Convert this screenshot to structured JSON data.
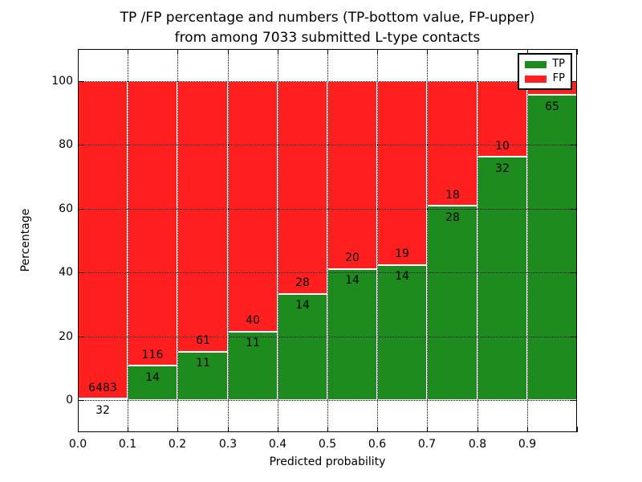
{
  "title": {
    "line1": "TP /FP percentage and numbers (TP-bottom value, FP-upper)",
    "line2": "from among 7033 submitted L-type contacts"
  },
  "axes": {
    "xlabel": "Predicted probability",
    "ylabel": "Percentage",
    "x_tick_labels": [
      "0.0",
      "0.1",
      "0.2",
      "0.3",
      "0.4",
      "0.5",
      "0.6",
      "0.7",
      "0.8",
      "0.9"
    ],
    "y_tick_labels": [
      "0",
      "20",
      "40",
      "60",
      "80",
      "100"
    ],
    "y_tick_values": [
      0,
      20,
      40,
      60,
      80,
      100
    ]
  },
  "legend": {
    "items": [
      {
        "label": "TP",
        "color": "#1e8b1e"
      },
      {
        "label": "FP",
        "color": "#ff1f1f"
      }
    ]
  },
  "chart_data": {
    "type": "bar",
    "stacked": true,
    "title": "TP /FP percentage and numbers (TP-bottom value, FP-upper) from among 7033 submitted L-type contacts",
    "xlabel": "Predicted probability",
    "ylabel": "Percentage",
    "xlim": [
      0.0,
      1.0
    ],
    "ylim": [
      -10,
      110
    ],
    "grid": true,
    "legend_position": "upper right",
    "bins": [
      [
        0.0,
        0.1
      ],
      [
        0.1,
        0.2
      ],
      [
        0.2,
        0.3
      ],
      [
        0.3,
        0.4
      ],
      [
        0.4,
        0.5
      ],
      [
        0.5,
        0.6
      ],
      [
        0.6,
        0.7
      ],
      [
        0.7,
        0.8
      ],
      [
        0.8,
        0.9
      ],
      [
        0.9,
        1.0
      ]
    ],
    "series": [
      {
        "name": "TP",
        "color": "#1e8b1e",
        "counts": [
          32,
          14,
          11,
          11,
          14,
          14,
          14,
          28,
          32,
          65
        ],
        "pct": [
          0.49,
          10.77,
          15.28,
          21.57,
          33.33,
          41.18,
          42.42,
          60.87,
          76.19,
          95.59
        ]
      },
      {
        "name": "FP",
        "color": "#ff1f1f",
        "counts": [
          6483,
          116,
          61,
          40,
          28,
          20,
          19,
          18,
          10,
          null
        ],
        "pct": [
          99.51,
          89.23,
          84.72,
          78.43,
          66.67,
          58.82,
          57.58,
          39.13,
          23.81,
          4.41
        ],
        "note": "FP count label for bin 0.9-1.0 is hidden behind the legend box"
      }
    ]
  }
}
